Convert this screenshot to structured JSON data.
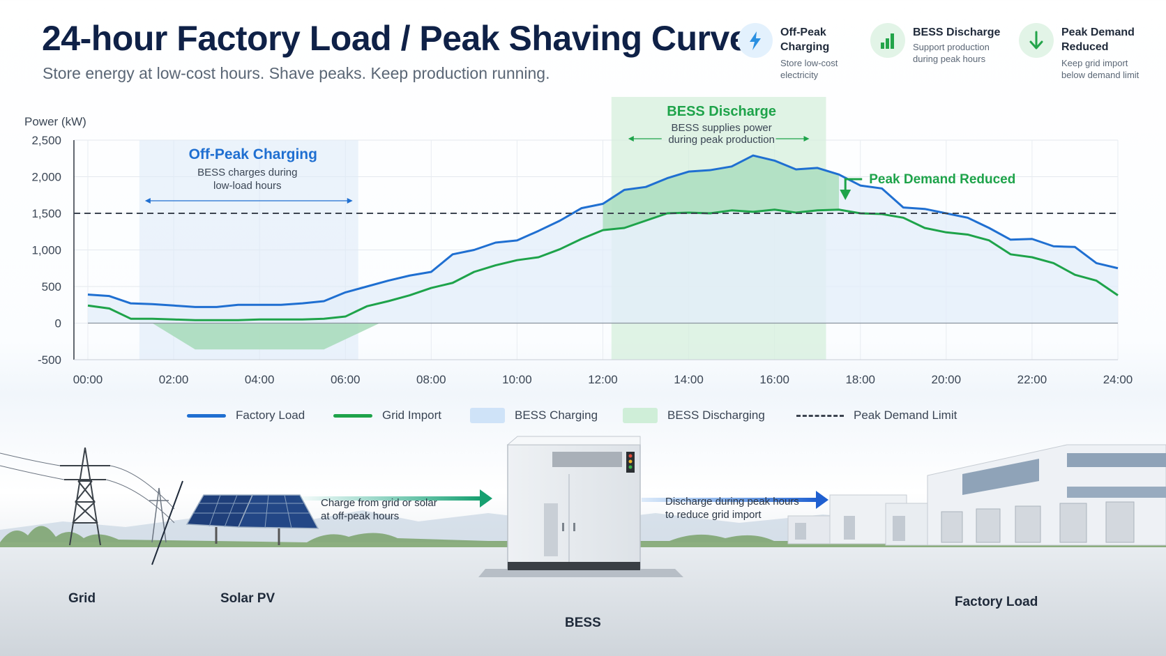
{
  "header": {
    "title": "24-hour Factory Load / Peak Shaving Curve",
    "subtitle": "Store energy at low-cost hours. Shave peaks. Keep production running."
  },
  "features": [
    {
      "icon": "lightning-icon",
      "title_line1": "Off-Peak",
      "title_line2": "Charging",
      "desc_line1": "Store low-cost",
      "desc_line2": "electricity",
      "color": "#2a8fe0"
    },
    {
      "icon": "bar-chart-icon",
      "title_line1": "BESS Discharge",
      "title_line2": "",
      "desc_line1": "Support production",
      "desc_line2": "during peak hours",
      "color": "#23a44a"
    },
    {
      "icon": "arrow-down-icon",
      "title_line1": "Peak Demand",
      "title_line2": "Reduced",
      "desc_line1": "Keep grid import",
      "desc_line2": "below demand limit",
      "color": "#23a44a"
    }
  ],
  "chart_data": {
    "type": "line",
    "ylabel": "Power (kW)",
    "xlabel": "",
    "ylim": [
      -500,
      2500
    ],
    "xlim": [
      0,
      24
    ],
    "y_ticks": [
      2500,
      2000,
      1500,
      1000,
      500,
      0,
      -500
    ],
    "y_tick_labels": [
      "2,500",
      "2,000",
      "1,500",
      "1,000",
      "500",
      "0",
      "-500"
    ],
    "x_ticks": [
      0,
      2,
      4,
      6,
      8,
      10,
      12,
      14,
      16,
      18,
      20,
      22,
      24
    ],
    "x_tick_labels": [
      "00:00",
      "02:00",
      "04:00",
      "06:00",
      "08:00",
      "10:00",
      "12:00",
      "14:00",
      "16:00",
      "18:00",
      "20:00",
      "22:00",
      "24:00"
    ],
    "grid": true,
    "peak_demand_limit": 1500,
    "series": [
      {
        "name": "Factory Load",
        "color": "#1f6fd1",
        "x": [
          0,
          0.5,
          1,
          1.5,
          2,
          2.5,
          3,
          3.5,
          4,
          4.5,
          5,
          5.5,
          6,
          6.5,
          7,
          7.5,
          8,
          8.5,
          9,
          9.5,
          10,
          10.5,
          11,
          11.5,
          12,
          12.5,
          13,
          13.5,
          14,
          14.5,
          15,
          15.5,
          16,
          16.5,
          17,
          17.5,
          18,
          18.5,
          19,
          19.5,
          20,
          20.5,
          21,
          21.5,
          22,
          22.5,
          23,
          23.5,
          24
        ],
        "values": [
          390,
          370,
          270,
          260,
          240,
          220,
          220,
          250,
          250,
          250,
          270,
          300,
          420,
          500,
          580,
          650,
          700,
          940,
          1000,
          1100,
          1130,
          1260,
          1400,
          1570,
          1630,
          1820,
          1860,
          1980,
          2070,
          2090,
          2140,
          2290,
          2220,
          2100,
          2120,
          2030,
          1880,
          1840,
          1580,
          1560,
          1500,
          1440,
          1300,
          1140,
          1150,
          1050,
          1040,
          820,
          750
        ]
      },
      {
        "name": "Grid Import",
        "color": "#1ea34a",
        "x": [
          0,
          0.5,
          1,
          1.5,
          2,
          2.5,
          3,
          3.5,
          4,
          4.5,
          5,
          5.5,
          6,
          6.5,
          7,
          7.5,
          8,
          8.5,
          9,
          9.5,
          10,
          10.5,
          11,
          11.5,
          12,
          12.5,
          13,
          13.5,
          14,
          14.5,
          15,
          15.5,
          16,
          16.5,
          17,
          17.5,
          18,
          18.5,
          19,
          19.5,
          20,
          20.5,
          21,
          21.5,
          22,
          22.5,
          23,
          23.5,
          24
        ],
        "values": [
          240,
          200,
          60,
          60,
          50,
          40,
          40,
          40,
          50,
          50,
          50,
          60,
          90,
          230,
          300,
          380,
          480,
          550,
          700,
          790,
          860,
          900,
          1010,
          1150,
          1270,
          1300,
          1400,
          1500,
          1510,
          1500,
          1540,
          1520,
          1550,
          1510,
          1540,
          1550,
          1500,
          1490,
          1440,
          1300,
          1240,
          1210,
          1130,
          940,
          900,
          820,
          660,
          580,
          380
        ]
      },
      {
        "name": "BESS Charging",
        "color": "#cfe4f8",
        "x": [
          1.5,
          2.5,
          5.5,
          6.8
        ],
        "values": [
          0,
          -360,
          -360,
          0
        ]
      }
    ],
    "regions": [
      {
        "name": "BESS Charging",
        "label": "Off-Peak Charging",
        "desc_line1": "BESS charges during",
        "desc_line2": "low-load hours",
        "x": [
          1.2,
          6.3
        ],
        "color": "#dceaf8"
      },
      {
        "name": "BESS Discharging",
        "label": "BESS Discharge",
        "desc_line1": "BESS supplies power",
        "desc_line2": "during peak production",
        "x": [
          12.2,
          17.2
        ],
        "color": "#d6efdc"
      }
    ],
    "annotation": {
      "label": "Peak Demand Reduced",
      "color": "#1ea34a"
    },
    "legend": {
      "position": "bottom"
    }
  },
  "legend_items": [
    {
      "label": "Factory Load",
      "kind": "line",
      "color": "#1f6fd1"
    },
    {
      "label": "Grid Import",
      "kind": "line",
      "color": "#1ea34a"
    },
    {
      "label": "BESS Charging",
      "kind": "box",
      "color": "#cfe3f8"
    },
    {
      "label": "BESS Discharging",
      "kind": "box",
      "color": "#cfeed8"
    },
    {
      "label": "Peak Demand Limit",
      "kind": "dash",
      "color": "#3c4450"
    }
  ],
  "scene": {
    "grid_label": "Grid",
    "solar_label": "Solar PV",
    "bess_label": "BESS",
    "factory_label": "Factory Load",
    "charge_line1": "Charge from grid or solar",
    "charge_line2": "at off-peak hours",
    "discharge_line1": "Discharge during peak hours",
    "discharge_line2": "to reduce grid import"
  }
}
